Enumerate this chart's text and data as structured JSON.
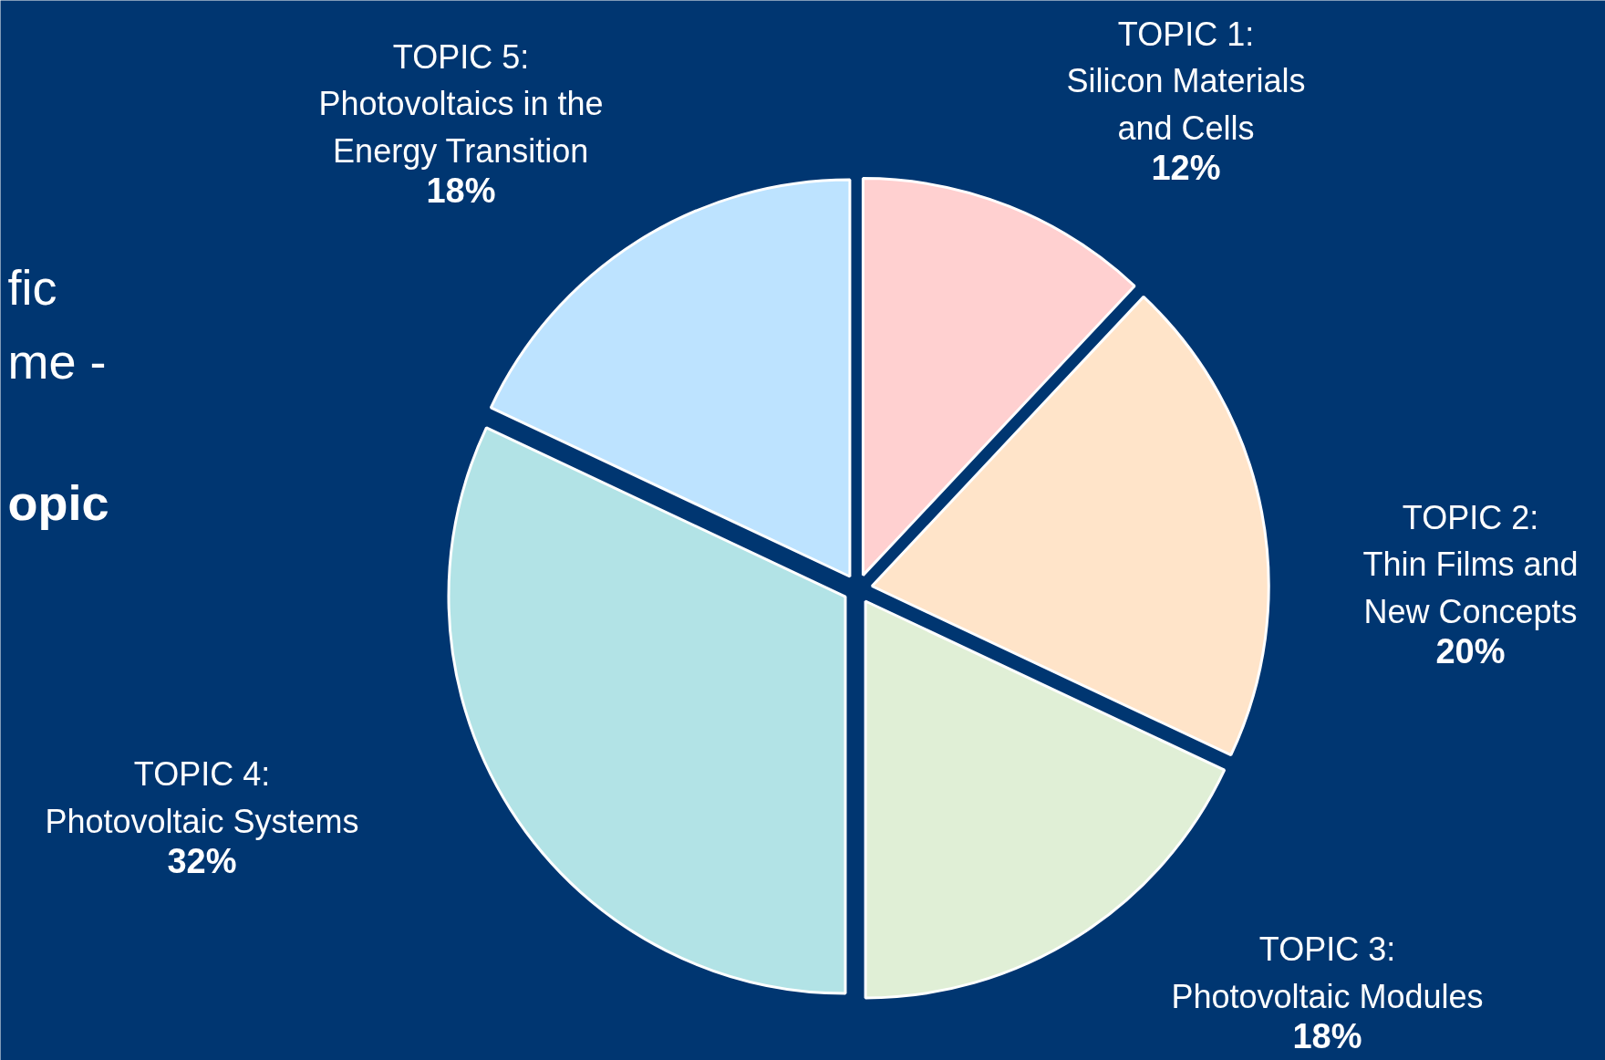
{
  "chart_data": {
    "type": "pie",
    "categories": [
      "TOPIC 1:\nSilicon Materials\nand Cells",
      "TOPIC 2:\nThin Films and\nNew Concepts",
      "TOPIC 3:\nPhotovoltaic Modules",
      "TOPIC 4:\nPhotovoltaic Systems",
      "TOPIC 5:\nPhotovoltaics in the\nEnergy Transition"
    ],
    "values": [
      12,
      20,
      18,
      32,
      18
    ],
    "value_labels": [
      "12%",
      "20%",
      "18%",
      "32%",
      "18%"
    ],
    "colors": [
      "#ffd0d0",
      "#ffe4c9",
      "#e0efd6",
      "#b2e3e6",
      "#bde3ff"
    ],
    "annotations": [
      "fic\nme -",
      "opic"
    ]
  }
}
